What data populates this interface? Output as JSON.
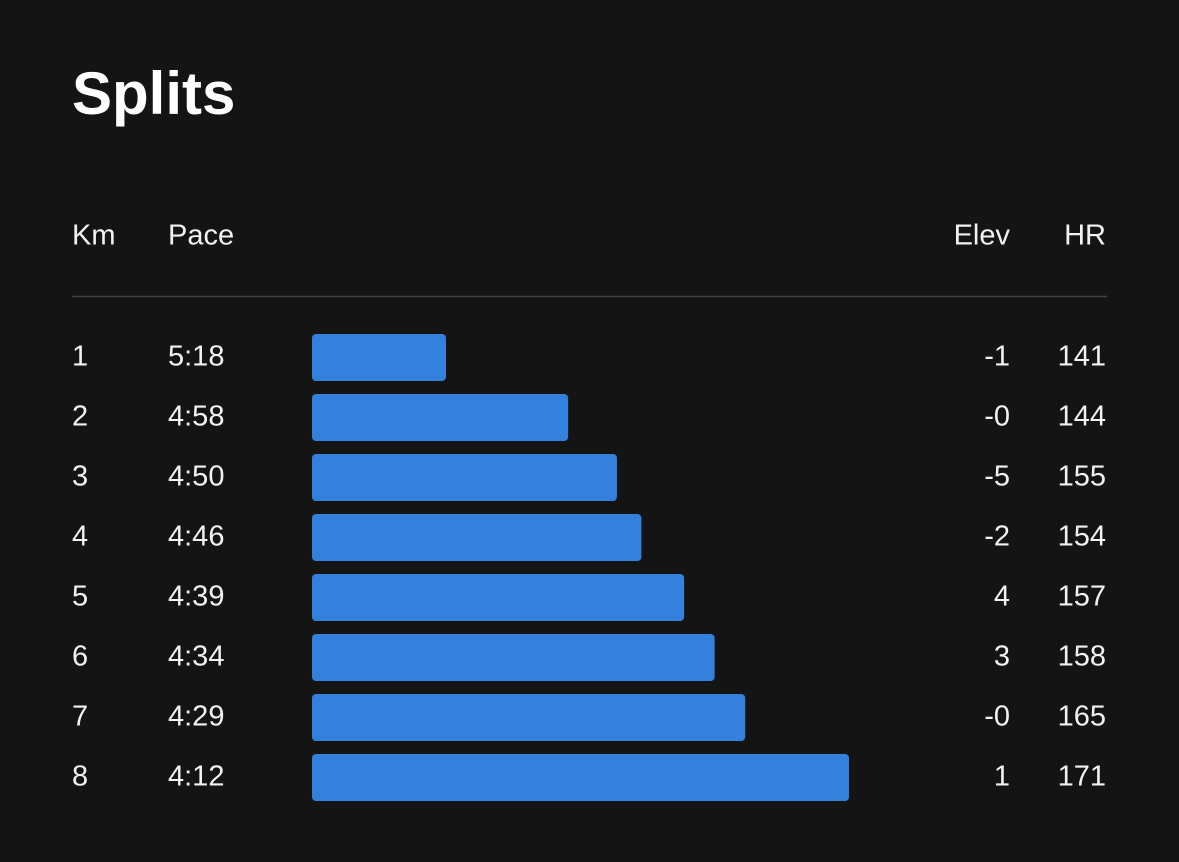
{
  "title": "Splits",
  "columns": [
    "Km",
    "Pace",
    "Elev",
    "HR"
  ],
  "rows": [
    {
      "km": "1",
      "pace": "5:18",
      "elev": "-1",
      "hr": "141"
    },
    {
      "km": "2",
      "pace": "4:58",
      "elev": "-0",
      "hr": "144"
    },
    {
      "km": "3",
      "pace": "4:50",
      "elev": "-5",
      "hr": "155"
    },
    {
      "km": "4",
      "pace": "4:46",
      "elev": "-2",
      "hr": "154"
    },
    {
      "km": "5",
      "pace": "4:39",
      "elev": "4",
      "hr": "157"
    },
    {
      "km": "6",
      "pace": "4:34",
      "elev": "3",
      "hr": "158"
    },
    {
      "km": "7",
      "pace": "4:29",
      "elev": "-0",
      "hr": "165"
    },
    {
      "km": "8",
      "pace": "4:12",
      "elev": "1",
      "hr": "171"
    }
  ]
}
